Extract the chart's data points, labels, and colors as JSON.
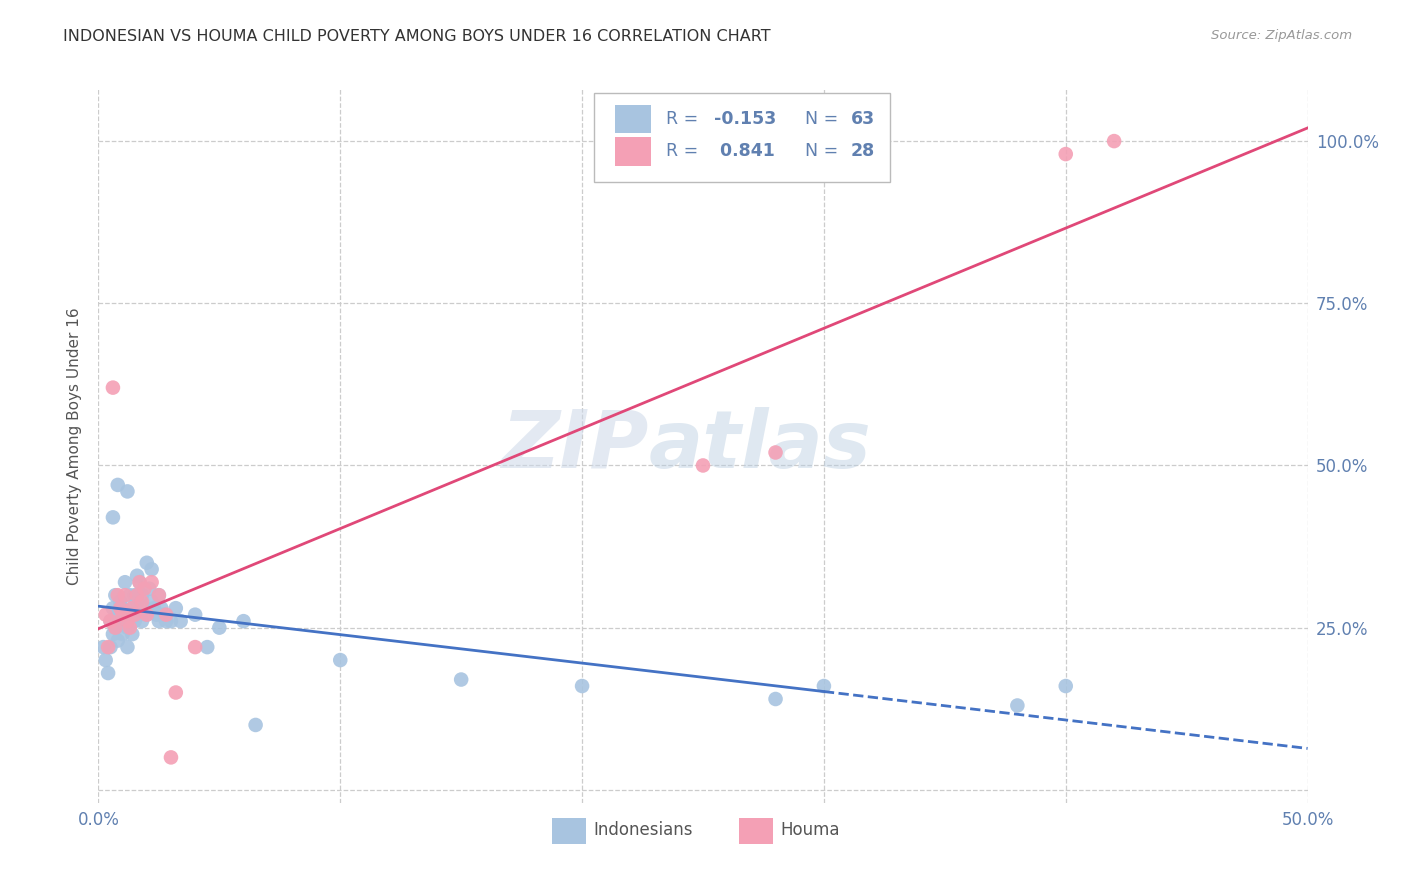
{
  "title": "INDONESIAN VS HOUMA CHILD POVERTY AMONG BOYS UNDER 16 CORRELATION CHART",
  "source": "Source: ZipAtlas.com",
  "ylabel": "Child Poverty Among Boys Under 16",
  "xlim": [
    0.0,
    0.5
  ],
  "ylim": [
    -0.02,
    1.08
  ],
  "yticks": [
    0.0,
    0.25,
    0.5,
    0.75,
    1.0
  ],
  "ytick_labels": [
    "",
    "25.0%",
    "50.0%",
    "75.0%",
    "100.0%"
  ],
  "xticks": [
    0.0,
    0.1,
    0.2,
    0.3,
    0.4,
    0.5
  ],
  "xtick_labels": [
    "0.0%",
    "",
    "",
    "",
    "",
    "50.0%"
  ],
  "color_blue": "#a8c4e0",
  "color_pink": "#f4a0b5",
  "line_blue": "#4472c4",
  "line_pink": "#e04878",
  "watermark_zip": "ZIP",
  "watermark_atlas": "atlas",
  "title_color": "#333333",
  "axis_color": "#6080b0",
  "indonesian_x": [
    0.002,
    0.003,
    0.004,
    0.005,
    0.005,
    0.006,
    0.006,
    0.007,
    0.007,
    0.008,
    0.008,
    0.009,
    0.009,
    0.01,
    0.01,
    0.01,
    0.011,
    0.011,
    0.012,
    0.012,
    0.013,
    0.013,
    0.014,
    0.014,
    0.015,
    0.015,
    0.016,
    0.016,
    0.017,
    0.017,
    0.018,
    0.018,
    0.019,
    0.02,
    0.02,
    0.021,
    0.022,
    0.022,
    0.023,
    0.024,
    0.025,
    0.025,
    0.026,
    0.027,
    0.028,
    0.03,
    0.032,
    0.034,
    0.04,
    0.045,
    0.05,
    0.06,
    0.065,
    0.1,
    0.15,
    0.2,
    0.28,
    0.3,
    0.38,
    0.4,
    0.006,
    0.008,
    0.012
  ],
  "indonesian_y": [
    0.22,
    0.2,
    0.18,
    0.22,
    0.26,
    0.24,
    0.28,
    0.25,
    0.3,
    0.27,
    0.23,
    0.26,
    0.29,
    0.24,
    0.28,
    0.26,
    0.27,
    0.32,
    0.25,
    0.22,
    0.3,
    0.27,
    0.24,
    0.28,
    0.26,
    0.3,
    0.29,
    0.33,
    0.27,
    0.32,
    0.26,
    0.3,
    0.28,
    0.27,
    0.35,
    0.31,
    0.29,
    0.34,
    0.28,
    0.27,
    0.3,
    0.26,
    0.28,
    0.27,
    0.26,
    0.26,
    0.28,
    0.26,
    0.27,
    0.22,
    0.25,
    0.26,
    0.1,
    0.2,
    0.17,
    0.16,
    0.14,
    0.16,
    0.13,
    0.16,
    0.42,
    0.47,
    0.46
  ],
  "houma_x": [
    0.003,
    0.004,
    0.005,
    0.006,
    0.007,
    0.008,
    0.009,
    0.01,
    0.011,
    0.012,
    0.013,
    0.014,
    0.015,
    0.016,
    0.017,
    0.018,
    0.019,
    0.02,
    0.022,
    0.025,
    0.028,
    0.03,
    0.032,
    0.04,
    0.25,
    0.28,
    0.4,
    0.42
  ],
  "houma_y": [
    0.27,
    0.22,
    0.26,
    0.62,
    0.25,
    0.3,
    0.28,
    0.27,
    0.3,
    0.26,
    0.25,
    0.28,
    0.27,
    0.3,
    0.32,
    0.29,
    0.31,
    0.27,
    0.32,
    0.3,
    0.27,
    0.05,
    0.15,
    0.22,
    0.5,
    0.52,
    0.98,
    1.0
  ],
  "blue_line_solid_end": 0.3,
  "blue_line_x0": 0.0,
  "blue_line_x1": 0.5,
  "pink_line_x0": 0.0,
  "pink_line_x1": 0.5
}
